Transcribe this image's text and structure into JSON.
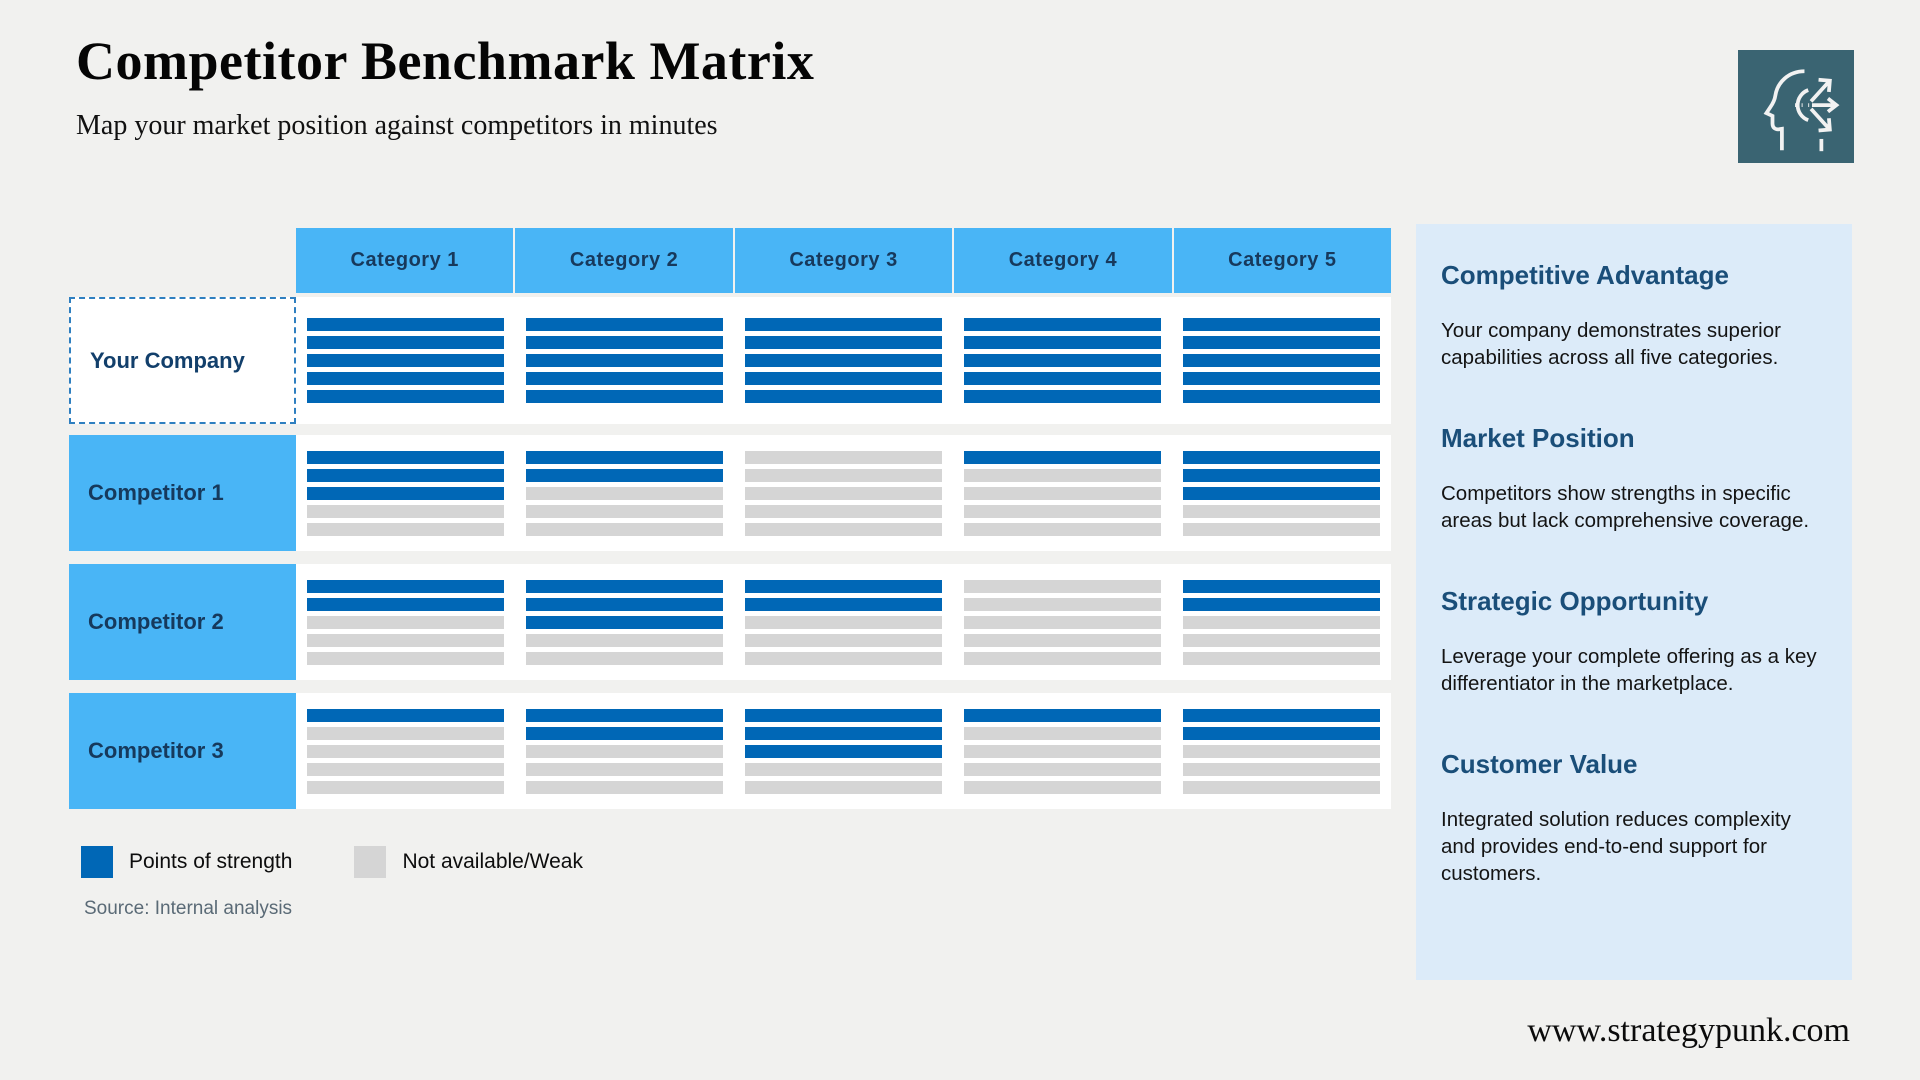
{
  "page": {
    "title": "Competitor Benchmark Matrix",
    "subtitle": "Map your market position against competitors in minutes",
    "source": "Source: Internal analysis",
    "website": "www.strategypunk.com"
  },
  "colors": {
    "strength": "#0067b6",
    "weak": "#d5d5d5",
    "header_blue": "#49b5f6",
    "sidebar_bg": "#dcebf9",
    "icon_teal": "#3a6472"
  },
  "chart_data": {
    "type": "table",
    "title": "Competitor Benchmark Matrix",
    "categories": [
      "Category 1",
      "Category 2",
      "Category 3",
      "Category 4",
      "Category 5"
    ],
    "max_score": 5,
    "series": [
      {
        "name": "Your Company",
        "values": [
          5,
          5,
          5,
          5,
          5
        ]
      },
      {
        "name": "Competitor 1",
        "values": [
          3,
          2,
          0,
          1,
          3
        ]
      },
      {
        "name": "Competitor 2",
        "values": [
          2,
          3,
          2,
          0,
          2
        ]
      },
      {
        "name": "Competitor 3",
        "values": [
          1,
          2,
          3,
          1,
          2
        ]
      }
    ],
    "legend_position": "bottom-left",
    "note": "Each cell shows 5 stacked bars; value = number of blue (strength) bars from top, remainder gray (weak)"
  },
  "matrix": {
    "columns": [
      "Category 1",
      "Category 2",
      "Category 3",
      "Category 4",
      "Category 5"
    ],
    "bars_per_cell": 5,
    "rows": [
      {
        "label": "Your Company",
        "highlight": true,
        "cells": [
          5,
          5,
          5,
          5,
          5
        ]
      },
      {
        "label": "Competitor 1",
        "highlight": false,
        "cells": [
          3,
          2,
          0,
          1,
          3
        ]
      },
      {
        "label": "Competitor 2",
        "highlight": false,
        "cells": [
          2,
          3,
          2,
          0,
          2
        ]
      },
      {
        "label": "Competitor 3",
        "highlight": false,
        "cells": [
          1,
          2,
          3,
          1,
          2
        ]
      }
    ]
  },
  "legend": [
    {
      "label": "Points of strength",
      "type": "strength"
    },
    {
      "label": "Not available/Weak",
      "type": "weak"
    }
  ],
  "sidebar": {
    "sections": [
      {
        "heading": "Competitive Advantage",
        "body": "Your company demonstrates superior capabilities across all five categories."
      },
      {
        "heading": "Market Position",
        "body": "Competitors show strengths in specific areas but lack comprehensive coverage."
      },
      {
        "heading": "Strategic Opportunity",
        "body": "Leverage your complete offering as a key differentiator in the marketplace."
      },
      {
        "heading": "Customer Value",
        "body": "Integrated solution reduces complexity and provides end-to-end support for customers."
      }
    ]
  }
}
